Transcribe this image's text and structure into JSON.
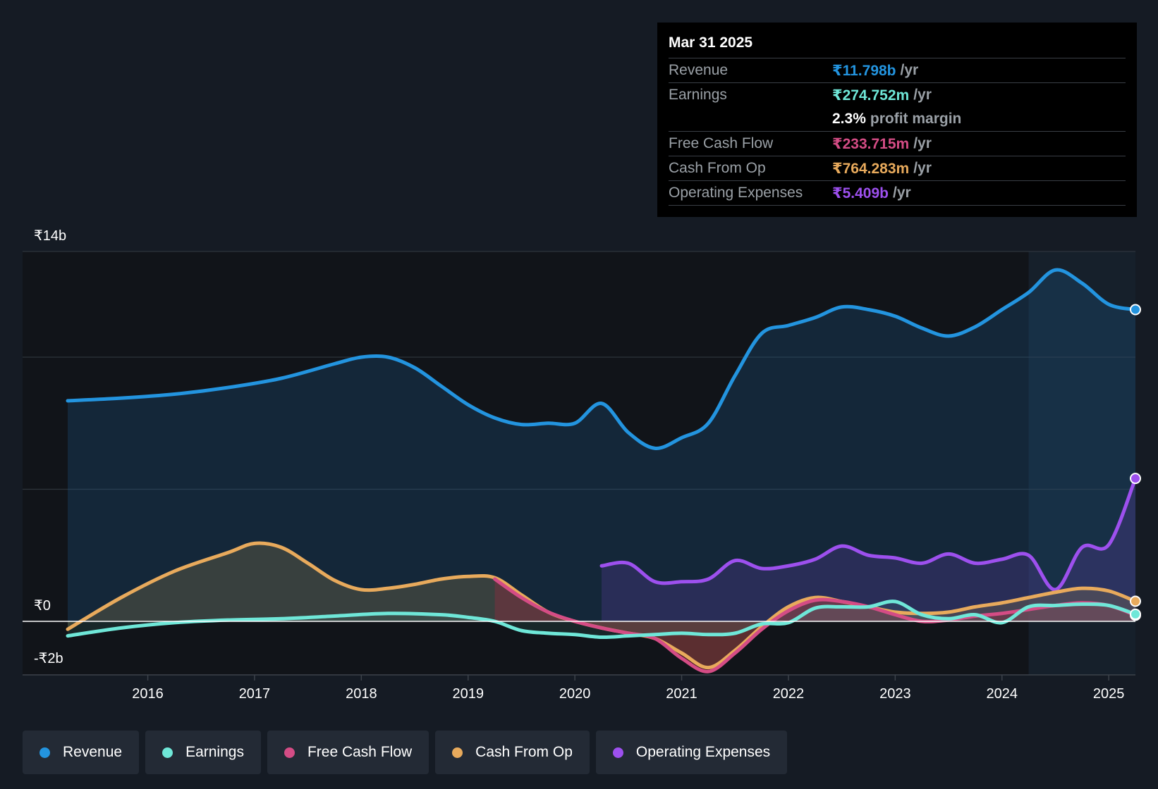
{
  "tooltip": {
    "date": "Mar 31 2025",
    "rows": [
      {
        "label": "Revenue",
        "value": "₹11.798b",
        "unit": "/yr",
        "color": "#2394df"
      },
      {
        "label": "Earnings",
        "value": "₹274.752m",
        "unit": "/yr",
        "color": "#6fe7d8"
      },
      {
        "label": "",
        "value": "2.3%",
        "unit": "profit margin",
        "color": "#ffffff"
      },
      {
        "label": "Free Cash Flow",
        "value": "₹233.715m",
        "unit": "/yr",
        "color": "#d44c85"
      },
      {
        "label": "Cash From Op",
        "value": "₹764.283m",
        "unit": "/yr",
        "color": "#e8aa5c"
      },
      {
        "label": "Operating Expenses",
        "value": "₹5.409b",
        "unit": "/yr",
        "color": "#9d50ee"
      }
    ]
  },
  "legend": [
    {
      "label": "Revenue",
      "color": "#2394df"
    },
    {
      "label": "Earnings",
      "color": "#6fe7d8"
    },
    {
      "label": "Free Cash Flow",
      "color": "#d44c85"
    },
    {
      "label": "Cash From Op",
      "color": "#e8aa5c"
    },
    {
      "label": "Operating Expenses",
      "color": "#9d50ee"
    }
  ],
  "chart_data": {
    "type": "area",
    "title": "",
    "ylabel": "",
    "xlabel": "",
    "y_unit": "₹ billions",
    "ylim": [
      -2,
      14
    ],
    "xlim": [
      2015.25,
      2025.25
    ],
    "y_tick_labels": [
      {
        "value": 14,
        "label": "₹14b"
      },
      {
        "value": 0,
        "label": "₹0"
      },
      {
        "value": -2,
        "label": "-₹2b"
      }
    ],
    "x_ticks": [
      2016,
      2017,
      2018,
      2019,
      2020,
      2021,
      2022,
      2023,
      2024,
      2025
    ],
    "x_tick_labels": [
      "2016",
      "2017",
      "2018",
      "2019",
      "2020",
      "2021",
      "2022",
      "2023",
      "2024",
      "2025"
    ],
    "gridlines_y": [
      14,
      10,
      5,
      0
    ],
    "forecast_shade_start": 2024.25,
    "series": [
      {
        "name": "Revenue",
        "color": "#2394df",
        "x": [
          2015.25,
          2015.75,
          2016.25,
          2016.75,
          2017.25,
          2017.75,
          2018.0,
          2018.25,
          2018.5,
          2018.75,
          2019.0,
          2019.25,
          2019.5,
          2019.75,
          2020.0,
          2020.25,
          2020.5,
          2020.75,
          2021.0,
          2021.25,
          2021.5,
          2021.75,
          2022.0,
          2022.25,
          2022.5,
          2022.75,
          2023.0,
          2023.25,
          2023.5,
          2023.75,
          2024.0,
          2024.25,
          2024.5,
          2024.75,
          2025.0,
          2025.25
        ],
        "values": [
          8.35,
          8.45,
          8.6,
          8.85,
          9.2,
          9.75,
          10.0,
          10.0,
          9.6,
          8.9,
          8.2,
          7.7,
          7.45,
          7.5,
          7.5,
          8.25,
          7.15,
          6.55,
          6.95,
          7.5,
          9.3,
          10.9,
          11.2,
          11.5,
          11.9,
          11.8,
          11.55,
          11.1,
          10.8,
          11.15,
          11.8,
          12.45,
          13.3,
          12.8,
          12.0,
          11.8
        ]
      },
      {
        "name": "Earnings",
        "color": "#6fe7d8",
        "x": [
          2015.25,
          2015.75,
          2016.25,
          2016.75,
          2017.25,
          2017.75,
          2018.25,
          2018.75,
          2019.0,
          2019.25,
          2019.5,
          2019.75,
          2020.0,
          2020.25,
          2020.5,
          2020.75,
          2021.0,
          2021.25,
          2021.5,
          2021.75,
          2022.0,
          2022.25,
          2022.5,
          2022.75,
          2023.0,
          2023.25,
          2023.5,
          2023.75,
          2024.0,
          2024.25,
          2024.5,
          2024.75,
          2025.0,
          2025.25
        ],
        "values": [
          -0.55,
          -0.25,
          -0.05,
          0.05,
          0.1,
          0.2,
          0.3,
          0.25,
          0.15,
          0.0,
          -0.35,
          -0.45,
          -0.5,
          -0.6,
          -0.55,
          -0.5,
          -0.45,
          -0.5,
          -0.45,
          -0.1,
          -0.05,
          0.5,
          0.55,
          0.55,
          0.75,
          0.25,
          0.1,
          0.25,
          -0.05,
          0.55,
          0.6,
          0.65,
          0.6,
          0.27
        ]
      },
      {
        "name": "Free Cash Flow",
        "color": "#d44c85",
        "x": [
          2019.25,
          2019.5,
          2019.75,
          2020.0,
          2020.25,
          2020.5,
          2020.75,
          2021.0,
          2021.25,
          2021.5,
          2021.75,
          2022.0,
          2022.25,
          2022.5,
          2022.75,
          2023.0,
          2023.25,
          2023.5,
          2023.75,
          2024.0,
          2024.25,
          2024.5,
          2024.75,
          2025.0,
          2025.25
        ],
        "values": [
          1.6,
          0.9,
          0.35,
          0.0,
          -0.25,
          -0.45,
          -0.65,
          -1.4,
          -1.9,
          -1.2,
          -0.3,
          0.4,
          0.8,
          0.75,
          0.55,
          0.25,
          0.0,
          0.05,
          0.2,
          0.3,
          0.45,
          0.6,
          0.7,
          0.6,
          0.23
        ]
      },
      {
        "name": "Cash From Op",
        "color": "#e8aa5c",
        "x": [
          2015.25,
          2015.75,
          2016.25,
          2016.75,
          2017.0,
          2017.25,
          2017.5,
          2017.75,
          2018.0,
          2018.25,
          2018.5,
          2018.75,
          2019.0,
          2019.25,
          2019.5,
          2019.75,
          2020.0,
          2020.25,
          2020.5,
          2020.75,
          2021.0,
          2021.25,
          2021.5,
          2021.75,
          2022.0,
          2022.25,
          2022.5,
          2022.75,
          2023.0,
          2023.25,
          2023.5,
          2023.75,
          2024.0,
          2024.25,
          2024.5,
          2024.75,
          2025.0,
          2025.25
        ],
        "values": [
          -0.3,
          0.9,
          1.9,
          2.6,
          2.95,
          2.8,
          2.2,
          1.55,
          1.2,
          1.25,
          1.4,
          1.6,
          1.7,
          1.65,
          1.0,
          0.35,
          0.0,
          -0.25,
          -0.45,
          -0.65,
          -1.2,
          -1.75,
          -1.1,
          -0.2,
          0.55,
          0.9,
          0.75,
          0.55,
          0.35,
          0.3,
          0.35,
          0.55,
          0.7,
          0.9,
          1.1,
          1.25,
          1.15,
          0.76
        ]
      },
      {
        "name": "Operating Expenses",
        "color": "#9d50ee",
        "x": [
          2020.25,
          2020.5,
          2020.75,
          2021.0,
          2021.25,
          2021.5,
          2021.75,
          2022.0,
          2022.25,
          2022.5,
          2022.75,
          2023.0,
          2023.25,
          2023.5,
          2023.75,
          2024.0,
          2024.25,
          2024.5,
          2024.75,
          2025.0,
          2025.25
        ],
        "values": [
          2.1,
          2.2,
          1.5,
          1.5,
          1.6,
          2.3,
          2.0,
          2.1,
          2.35,
          2.85,
          2.5,
          2.4,
          2.2,
          2.55,
          2.2,
          2.35,
          2.5,
          1.2,
          2.8,
          2.9,
          5.41
        ]
      }
    ]
  }
}
